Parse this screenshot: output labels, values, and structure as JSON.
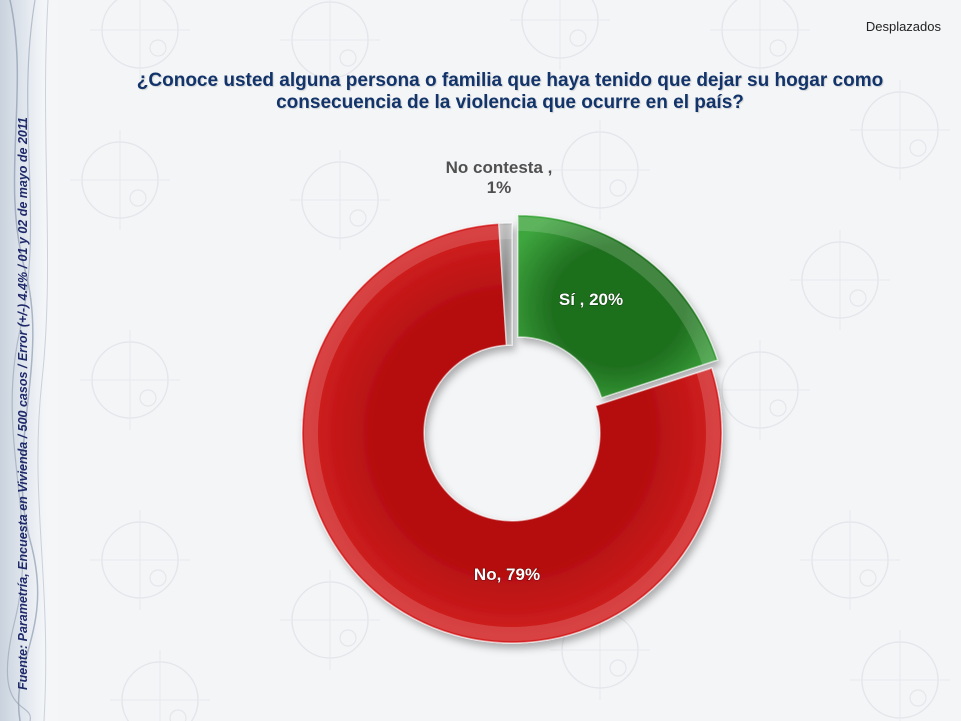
{
  "header": {
    "section_tag": "Desplazados"
  },
  "question": {
    "text": "¿Conoce usted alguna persona o familia que haya tenido que dejar su hogar como consecuencia de la violencia que ocurre en el país?"
  },
  "source_note": "Fuente: Parametría, Encuesta en Vivienda / 500 casos / Error (+/-) 4.4% / 01 y 02 de mayo de 2011",
  "chart_data": {
    "type": "pie",
    "donut": true,
    "categories": [
      "Sí",
      "No",
      "No contesta"
    ],
    "values": [
      20,
      79,
      1
    ],
    "labels": [
      "Sí , 20%",
      "No, 79%",
      "No contesta , 1%"
    ],
    "colors": [
      "#2b8a2b",
      "#d01818",
      "#a0a0a0"
    ],
    "title": ""
  }
}
